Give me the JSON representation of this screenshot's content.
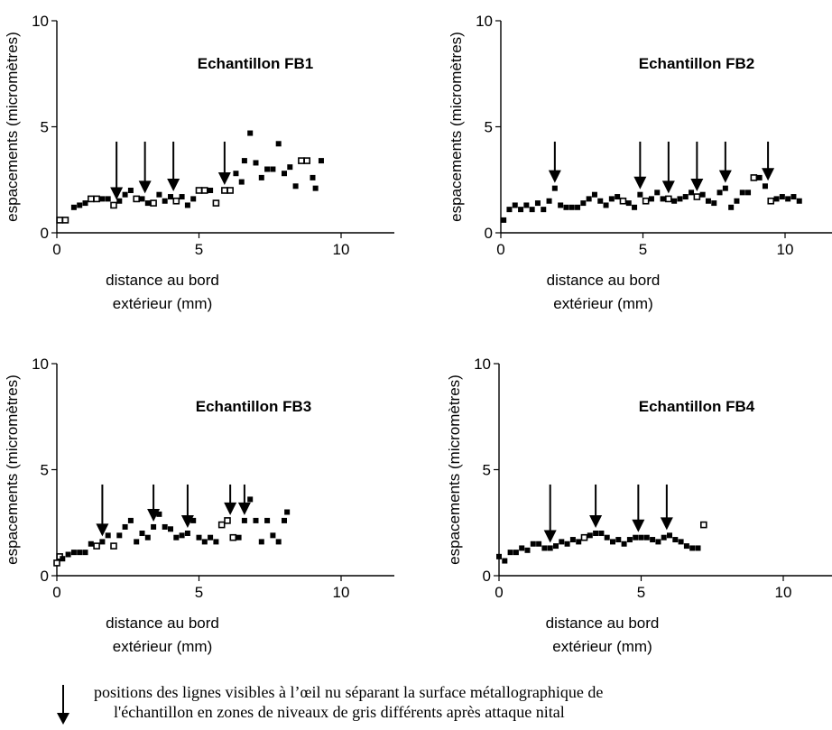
{
  "chart_data": [
    {
      "type": "scatter",
      "title": "Echantillon FB1",
      "xlabel": "distance au bord\nextérieur (mm)",
      "ylabel": "espacements (micromètres)",
      "xlim": [
        0,
        12
      ],
      "ylim": [
        0,
        10
      ],
      "xticks": [
        0,
        5,
        10
      ],
      "yticks": [
        0,
        5,
        10
      ],
      "grid": false,
      "points": [
        {
          "x": 0.1,
          "y": 0.6,
          "hollow": true
        },
        {
          "x": 0.3,
          "y": 0.6,
          "hollow": true
        },
        {
          "x": 0.6,
          "y": 1.2
        },
        {
          "x": 0.8,
          "y": 1.3
        },
        {
          "x": 1.0,
          "y": 1.4
        },
        {
          "x": 1.2,
          "y": 1.6,
          "hollow": true
        },
        {
          "x": 1.4,
          "y": 1.6,
          "hollow": true
        },
        {
          "x": 1.6,
          "y": 1.6
        },
        {
          "x": 1.8,
          "y": 1.6
        },
        {
          "x": 2.0,
          "y": 1.3,
          "hollow": true
        },
        {
          "x": 2.2,
          "y": 1.5
        },
        {
          "x": 2.4,
          "y": 1.8
        },
        {
          "x": 2.6,
          "y": 2.0
        },
        {
          "x": 2.8,
          "y": 1.6,
          "hollow": true
        },
        {
          "x": 3.0,
          "y": 1.6
        },
        {
          "x": 3.2,
          "y": 1.4
        },
        {
          "x": 3.4,
          "y": 1.4,
          "hollow": true
        },
        {
          "x": 3.6,
          "y": 1.8
        },
        {
          "x": 3.8,
          "y": 1.5
        },
        {
          "x": 4.0,
          "y": 1.7
        },
        {
          "x": 4.2,
          "y": 1.5,
          "hollow": true
        },
        {
          "x": 4.4,
          "y": 1.7
        },
        {
          "x": 4.6,
          "y": 1.3
        },
        {
          "x": 4.8,
          "y": 1.6
        },
        {
          "x": 5.0,
          "y": 2.0,
          "hollow": true
        },
        {
          "x": 5.2,
          "y": 2.0,
          "hollow": true
        },
        {
          "x": 5.4,
          "y": 2.0
        },
        {
          "x": 5.6,
          "y": 1.4,
          "hollow": true
        },
        {
          "x": 5.9,
          "y": 2.0,
          "hollow": true
        },
        {
          "x": 6.1,
          "y": 2.0,
          "hollow": true
        },
        {
          "x": 6.3,
          "y": 2.8
        },
        {
          "x": 6.5,
          "y": 2.4
        },
        {
          "x": 6.6,
          "y": 3.4
        },
        {
          "x": 6.8,
          "y": 4.7
        },
        {
          "x": 7.0,
          "y": 3.3
        },
        {
          "x": 7.2,
          "y": 2.6
        },
        {
          "x": 7.4,
          "y": 3.0
        },
        {
          "x": 7.6,
          "y": 3.0
        },
        {
          "x": 7.8,
          "y": 4.2
        },
        {
          "x": 8.0,
          "y": 2.8
        },
        {
          "x": 8.2,
          "y": 3.1
        },
        {
          "x": 8.4,
          "y": 2.2
        },
        {
          "x": 8.6,
          "y": 3.4,
          "hollow": true
        },
        {
          "x": 8.8,
          "y": 3.4,
          "hollow": true
        },
        {
          "x": 9.0,
          "y": 2.6
        },
        {
          "x": 9.1,
          "y": 2.1
        },
        {
          "x": 9.3,
          "y": 3.4
        }
      ],
      "arrows": [
        2.1,
        3.1,
        4.1,
        5.9
      ]
    },
    {
      "type": "scatter",
      "title": "Echantillon FB2",
      "xlabel": "distance au bord\nextérieur (mm)",
      "ylabel": "espacements (micromètres)",
      "xlim": [
        0,
        12
      ],
      "ylim": [
        0,
        10
      ],
      "xticks": [
        0,
        5,
        10
      ],
      "yticks": [
        0,
        5,
        10
      ],
      "grid": false,
      "points": [
        {
          "x": 0.1,
          "y": 0.6
        },
        {
          "x": 0.3,
          "y": 1.1
        },
        {
          "x": 0.5,
          "y": 1.3
        },
        {
          "x": 0.7,
          "y": 1.1
        },
        {
          "x": 0.9,
          "y": 1.3
        },
        {
          "x": 1.1,
          "y": 1.1
        },
        {
          "x": 1.3,
          "y": 1.4
        },
        {
          "x": 1.5,
          "y": 1.1
        },
        {
          "x": 1.7,
          "y": 1.5
        },
        {
          "x": 1.9,
          "y": 2.1
        },
        {
          "x": 2.1,
          "y": 1.3
        },
        {
          "x": 2.3,
          "y": 1.2
        },
        {
          "x": 2.5,
          "y": 1.2
        },
        {
          "x": 2.7,
          "y": 1.2
        },
        {
          "x": 2.9,
          "y": 1.4
        },
        {
          "x": 3.1,
          "y": 1.6
        },
        {
          "x": 3.3,
          "y": 1.8
        },
        {
          "x": 3.5,
          "y": 1.5
        },
        {
          "x": 3.7,
          "y": 1.3
        },
        {
          "x": 3.9,
          "y": 1.6
        },
        {
          "x": 4.1,
          "y": 1.7
        },
        {
          "x": 4.3,
          "y": 1.5,
          "hollow": true
        },
        {
          "x": 4.5,
          "y": 1.4
        },
        {
          "x": 4.7,
          "y": 1.2
        },
        {
          "x": 4.9,
          "y": 1.8
        },
        {
          "x": 5.1,
          "y": 1.5,
          "hollow": true
        },
        {
          "x": 5.3,
          "y": 1.6
        },
        {
          "x": 5.5,
          "y": 1.9
        },
        {
          "x": 5.7,
          "y": 1.6
        },
        {
          "x": 5.9,
          "y": 1.6,
          "hollow": true
        },
        {
          "x": 6.1,
          "y": 1.5
        },
        {
          "x": 6.3,
          "y": 1.6
        },
        {
          "x": 6.5,
          "y": 1.7
        },
        {
          "x": 6.7,
          "y": 1.9
        },
        {
          "x": 6.9,
          "y": 1.7,
          "hollow": true
        },
        {
          "x": 7.1,
          "y": 1.8
        },
        {
          "x": 7.3,
          "y": 1.5
        },
        {
          "x": 7.5,
          "y": 1.4
        },
        {
          "x": 7.7,
          "y": 1.9
        },
        {
          "x": 7.9,
          "y": 2.1
        },
        {
          "x": 8.1,
          "y": 1.2
        },
        {
          "x": 8.3,
          "y": 1.5
        },
        {
          "x": 8.5,
          "y": 1.9
        },
        {
          "x": 8.7,
          "y": 1.9
        },
        {
          "x": 8.9,
          "y": 2.6,
          "hollow": true
        },
        {
          "x": 9.1,
          "y": 2.6
        },
        {
          "x": 9.3,
          "y": 2.2
        },
        {
          "x": 9.5,
          "y": 1.5,
          "hollow": true
        },
        {
          "x": 9.7,
          "y": 1.6
        },
        {
          "x": 9.9,
          "y": 1.7
        },
        {
          "x": 10.1,
          "y": 1.6
        },
        {
          "x": 10.3,
          "y": 1.7
        },
        {
          "x": 10.5,
          "y": 1.5
        }
      ],
      "arrows": [
        1.9,
        4.9,
        5.9,
        6.9,
        7.9,
        9.4
      ]
    },
    {
      "type": "scatter",
      "title": "Echantillon FB3",
      "xlabel": "distance au bord\nextérieur (mm)",
      "ylabel": "espacements (micromètres)",
      "xlim": [
        0,
        12
      ],
      "ylim": [
        0,
        10
      ],
      "xticks": [
        0,
        5,
        10
      ],
      "yticks": [
        0,
        5,
        10
      ],
      "grid": false,
      "points": [
        {
          "x": 0.0,
          "y": 0.6,
          "hollow": true
        },
        {
          "x": 0.1,
          "y": 0.9,
          "hollow": true
        },
        {
          "x": 0.2,
          "y": 0.8
        },
        {
          "x": 0.4,
          "y": 1.0
        },
        {
          "x": 0.6,
          "y": 1.1
        },
        {
          "x": 0.8,
          "y": 1.1
        },
        {
          "x": 1.0,
          "y": 1.1
        },
        {
          "x": 1.2,
          "y": 1.5
        },
        {
          "x": 1.4,
          "y": 1.4,
          "hollow": true
        },
        {
          "x": 1.6,
          "y": 1.6
        },
        {
          "x": 1.8,
          "y": 1.9
        },
        {
          "x": 2.0,
          "y": 1.4,
          "hollow": true
        },
        {
          "x": 2.2,
          "y": 1.9
        },
        {
          "x": 2.4,
          "y": 2.3
        },
        {
          "x": 2.6,
          "y": 2.6
        },
        {
          "x": 2.8,
          "y": 1.6
        },
        {
          "x": 3.0,
          "y": 2.0
        },
        {
          "x": 3.2,
          "y": 1.8
        },
        {
          "x": 3.4,
          "y": 2.3
        },
        {
          "x": 3.6,
          "y": 2.9
        },
        {
          "x": 3.8,
          "y": 2.3
        },
        {
          "x": 4.0,
          "y": 2.2
        },
        {
          "x": 4.2,
          "y": 1.8
        },
        {
          "x": 4.4,
          "y": 1.9
        },
        {
          "x": 4.6,
          "y": 2.0
        },
        {
          "x": 4.8,
          "y": 2.6
        },
        {
          "x": 5.0,
          "y": 1.8
        },
        {
          "x": 5.2,
          "y": 1.6
        },
        {
          "x": 5.4,
          "y": 1.8
        },
        {
          "x": 5.6,
          "y": 1.6
        },
        {
          "x": 5.8,
          "y": 2.4,
          "hollow": true
        },
        {
          "x": 6.0,
          "y": 2.6,
          "hollow": true
        },
        {
          "x": 6.2,
          "y": 1.8,
          "hollow": true
        },
        {
          "x": 6.4,
          "y": 1.8
        },
        {
          "x": 6.6,
          "y": 2.6
        },
        {
          "x": 6.8,
          "y": 3.6
        },
        {
          "x": 7.0,
          "y": 2.6
        },
        {
          "x": 7.2,
          "y": 1.6
        },
        {
          "x": 7.4,
          "y": 2.6
        },
        {
          "x": 7.6,
          "y": 1.9
        },
        {
          "x": 7.8,
          "y": 1.6
        },
        {
          "x": 8.0,
          "y": 2.6
        },
        {
          "x": 8.1,
          "y": 3.0
        }
      ],
      "arrows": [
        1.6,
        3.4,
        4.6,
        6.1,
        6.6
      ]
    },
    {
      "type": "scatter",
      "title": "Echantillon FB4",
      "xlabel": "distance au bord\nextérieur (mm)",
      "ylabel": "espacements (micromètres)",
      "xlim": [
        0,
        12
      ],
      "ylim": [
        0,
        10
      ],
      "xticks": [
        0,
        5,
        10
      ],
      "yticks": [
        0,
        5,
        10
      ],
      "grid": false,
      "points": [
        {
          "x": 0.0,
          "y": 0.9
        },
        {
          "x": 0.2,
          "y": 0.7
        },
        {
          "x": 0.4,
          "y": 1.1
        },
        {
          "x": 0.6,
          "y": 1.1
        },
        {
          "x": 0.8,
          "y": 1.3
        },
        {
          "x": 1.0,
          "y": 1.2
        },
        {
          "x": 1.2,
          "y": 1.5
        },
        {
          "x": 1.4,
          "y": 1.5
        },
        {
          "x": 1.6,
          "y": 1.3
        },
        {
          "x": 1.8,
          "y": 1.3
        },
        {
          "x": 2.0,
          "y": 1.4
        },
        {
          "x": 2.2,
          "y": 1.6
        },
        {
          "x": 2.4,
          "y": 1.5
        },
        {
          "x": 2.6,
          "y": 1.7
        },
        {
          "x": 2.8,
          "y": 1.6
        },
        {
          "x": 3.0,
          "y": 1.8,
          "hollow": true
        },
        {
          "x": 3.2,
          "y": 1.9
        },
        {
          "x": 3.4,
          "y": 2.0
        },
        {
          "x": 3.6,
          "y": 2.0
        },
        {
          "x": 3.8,
          "y": 1.8
        },
        {
          "x": 4.0,
          "y": 1.6
        },
        {
          "x": 4.2,
          "y": 1.7
        },
        {
          "x": 4.4,
          "y": 1.5
        },
        {
          "x": 4.6,
          "y": 1.7
        },
        {
          "x": 4.8,
          "y": 1.8
        },
        {
          "x": 5.0,
          "y": 1.8
        },
        {
          "x": 5.2,
          "y": 1.8
        },
        {
          "x": 5.4,
          "y": 1.7
        },
        {
          "x": 5.6,
          "y": 1.6
        },
        {
          "x": 5.8,
          "y": 1.8
        },
        {
          "x": 6.0,
          "y": 1.9
        },
        {
          "x": 6.2,
          "y": 1.7
        },
        {
          "x": 6.4,
          "y": 1.6
        },
        {
          "x": 6.6,
          "y": 1.4
        },
        {
          "x": 6.8,
          "y": 1.3
        },
        {
          "x": 7.0,
          "y": 1.3
        },
        {
          "x": 7.2,
          "y": 2.4,
          "hollow": true
        }
      ],
      "arrows": [
        1.8,
        3.4,
        4.9,
        5.9
      ]
    }
  ],
  "legend": {
    "line1": "positions des lignes visibles à l’œil nu séparant la surface métallographique de",
    "line2": "l'échantillon en zones de niveaux de gris différents après attaque nital"
  }
}
